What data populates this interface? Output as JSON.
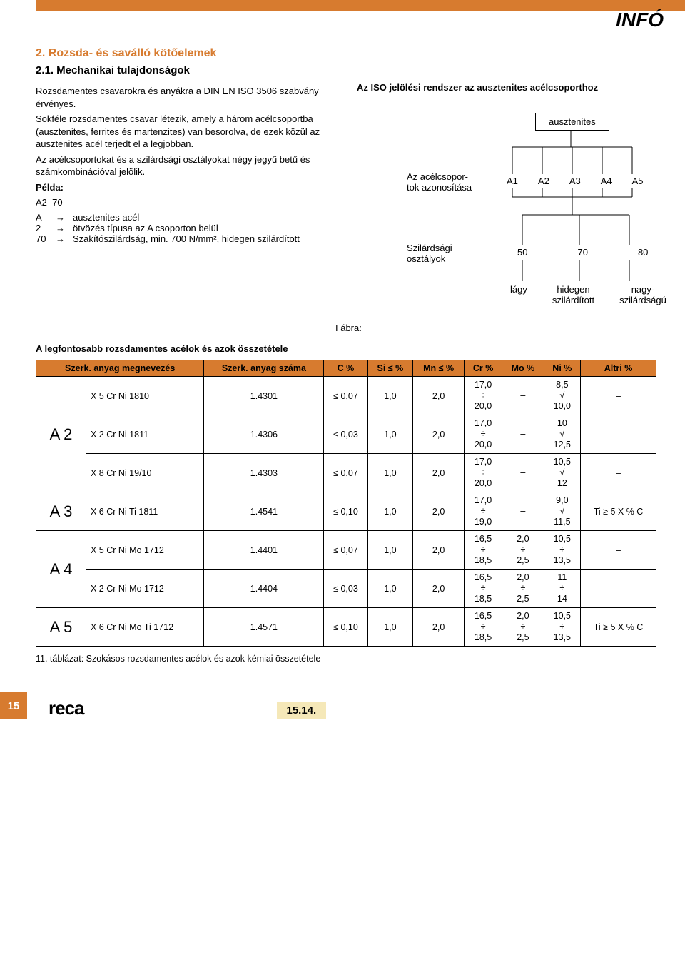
{
  "header": {
    "info": "INFÓ"
  },
  "section": {
    "num_title": "2.   Rozsda- és saválló kötőelemek",
    "sub": "2.1. Mechanikai tulajdonságok",
    "p1": "Rozsdamentes csavarokra és anyákra a DIN EN ISO 3506 szabvány érvényes.",
    "p2": "Sokféle rozsdamentes csavar létezik, amely a három acélcsoportba (ausztenites, ferrites és martenzites) van besorolva, de ezek közül az ausztenites acél terjedt el a legjobban.",
    "p3": "Az acélcsoportokat és a szilárdsági osztályokat négy jegyű betű és számkombinációval jelölik.",
    "example_label": "Példa:",
    "example_code": "A2–70",
    "ex_rows": [
      {
        "k": "A",
        "v": "ausztenites acél"
      },
      {
        "k": "2",
        "v": "ötvözés típusa az A csoporton belül"
      },
      {
        "k": "70",
        "v": "Szakítószilárdság, min. 700 N/mm², hidegen szilárdított"
      }
    ]
  },
  "diagram": {
    "title": "Az ISO jelölési rendszer az ausztenites acélcsoporthoz",
    "austenitic": "ausztenites",
    "group_label1": "Az acélcsopor-",
    "group_label2": "tok azonosítása",
    "groups": [
      "A1",
      "A2",
      "A3",
      "A4",
      "A5"
    ],
    "strength_label1": "Szilárdsági",
    "strength_label2": "osztályok",
    "strengths": [
      "50",
      "70",
      "80"
    ],
    "bottom": [
      "lágy",
      "hidegen szilárdított",
      "nagy-szilárdságú"
    ],
    "fig": "I ábra:"
  },
  "table": {
    "title": "A legfontosabb rozsdamentes acélok és azok összetétele",
    "headers": [
      "Szerk. anyag megnevezés",
      "Szerk. anyag száma",
      "C %",
      "Si ≤ %",
      "Mn ≤ %",
      "Cr %",
      "Mo %",
      "Ni %",
      "Altri %"
    ],
    "groups": [
      {
        "grp": "A 2",
        "rows": [
          {
            "name": "X 5 Cr Ni 1810",
            "num": "1.4301",
            "c": "≤ 0,07",
            "si": "1,0",
            "mn": "2,0",
            "cr": "17,0\n÷\n20,0",
            "mo": "–",
            "ni": "8,5\n√\n10,0",
            "al": "–"
          },
          {
            "name": "X 2 Cr Ni 1811",
            "num": "1.4306",
            "c": "≤ 0,03",
            "si": "1,0",
            "mn": "2,0",
            "cr": "17,0\n÷\n20,0",
            "mo": "–",
            "ni": "10\n√\n12,5",
            "al": "–"
          },
          {
            "name": "X 8 Cr Ni 19/10",
            "num": "1.4303",
            "c": "≤ 0,07",
            "si": "1,0",
            "mn": "2,0",
            "cr": "17,0\n÷\n20,0",
            "mo": "–",
            "ni": "10,5\n√\n12",
            "al": "–"
          }
        ]
      },
      {
        "grp": "A 3",
        "rows": [
          {
            "name": "X 6 Cr Ni Ti 1811",
            "num": "1.4541",
            "c": "≤ 0,10",
            "si": "1,0",
            "mn": "2,0",
            "cr": "17,0\n÷\n19,0",
            "mo": "–",
            "ni": "9,0\n√\n11,5",
            "al": "Ti ≥ 5 X % C"
          }
        ]
      },
      {
        "grp": "A 4",
        "rows": [
          {
            "name": "X 5 Cr Ni Mo 1712",
            "num": "1.4401",
            "c": "≤ 0,07",
            "si": "1,0",
            "mn": "2,0",
            "cr": "16,5\n÷\n18,5",
            "mo": "2,0\n÷\n2,5",
            "ni": "10,5\n÷\n13,5",
            "al": "–"
          },
          {
            "name": "X 2 Cr Ni Mo 1712",
            "num": "1.4404",
            "c": "≤ 0,03",
            "si": "1,0",
            "mn": "2,0",
            "cr": "16,5\n÷\n18,5",
            "mo": "2,0\n÷\n2,5",
            "ni": "11\n÷\n14",
            "al": "–"
          }
        ]
      },
      {
        "grp": "A 5",
        "rows": [
          {
            "name": "X 6 Cr Ni Mo Ti 1712",
            "num": "1.4571",
            "c": "≤ 0,10",
            "si": "1,0",
            "mn": "2,0",
            "cr": "16,5\n÷\n18,5",
            "mo": "2,0\n÷\n2,5",
            "ni": "10,5\n÷\n13,5",
            "al": "Ti ≥ 5 X % C"
          }
        ]
      }
    ],
    "caption": "11. táblázat:  Szokásos rozsdamentes acélok és azok kémiai összetétele"
  },
  "footer": {
    "page": "15",
    "logo": "reca",
    "secnum": "15.14."
  },
  "colors": {
    "accent": "#d77b2f",
    "footer_box": "#f5e8b8"
  }
}
